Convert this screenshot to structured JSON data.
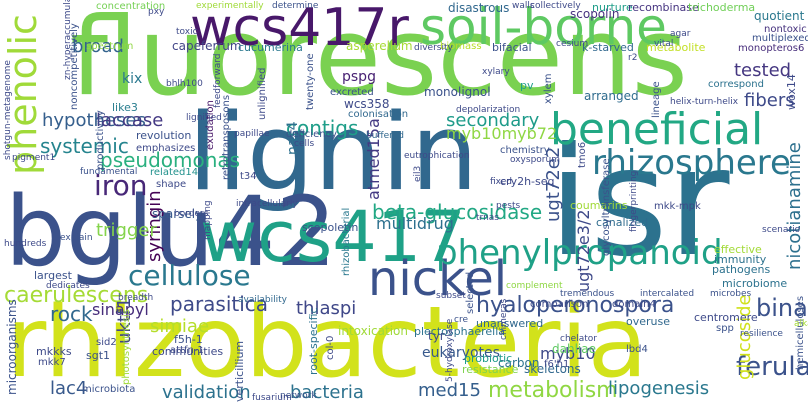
{
  "words": [
    {
      "text": "fluorescens",
      "color": "#7ad151"
    },
    {
      "text": "isr",
      "color": "#2c728e"
    },
    {
      "text": "rhizobacteria",
      "color": "#d2e21b"
    },
    {
      "text": "lignin",
      "color": "#31688e"
    },
    {
      "text": "bglu42",
      "color": "#3b528b"
    },
    {
      "text": "wcs417",
      "color": "#1fa187"
    },
    {
      "text": "wcs417r",
      "color": "#48186a"
    },
    {
      "text": "soil-borne",
      "color": "#5ec962"
    },
    {
      "text": "phenolic",
      "color": "#a0da39"
    },
    {
      "text": "beneficial",
      "color": "#22a884"
    },
    {
      "text": "nickel",
      "color": "#3b528b"
    },
    {
      "text": "rhizosphere",
      "color": "#2a788e"
    },
    {
      "text": "phenylpropanoid",
      "color": "#1fa187"
    },
    {
      "text": "cellulose",
      "color": "#2a788e"
    },
    {
      "text": "iron",
      "color": "#482878"
    },
    {
      "text": "metabolism",
      "color": "#90d743"
    },
    {
      "text": "ferulate",
      "color": "#3b528b"
    },
    {
      "text": "validation",
      "color": "#2c728e"
    },
    {
      "text": "bacteria",
      "color": "#2c728e"
    },
    {
      "text": "pseudomonas",
      "color": "#2ab07f"
    },
    {
      "text": "caerulescens",
      "color": "#a5db36"
    },
    {
      "text": "hyaloperonospora",
      "color": "#3b528b"
    },
    {
      "text": "beta-glucosidase",
      "color": "#22a884"
    },
    {
      "text": "parasitica",
      "color": "#3e4a89"
    },
    {
      "text": "simiae",
      "color": "#b5de2b"
    },
    {
      "text": "binary",
      "color": "#3b528b"
    },
    {
      "text": "contigs",
      "color": "#1f9e89"
    },
    {
      "text": "systemic",
      "color": "#25848e"
    },
    {
      "text": "hypotheses",
      "color": "#355f8d"
    },
    {
      "text": "secondary",
      "color": "#1e9b8a"
    },
    {
      "text": "broad",
      "color": "#33638d"
    },
    {
      "text": "tested",
      "color": "#453781"
    },
    {
      "text": "fibers",
      "color": "#3e4a89"
    },
    {
      "text": "laccase",
      "color": "#443983"
    },
    {
      "text": "myb10myb72",
      "color": "#8fd744"
    },
    {
      "text": "nicotianamine",
      "color": "#2d708e"
    },
    {
      "text": "syringin",
      "color": "#440154"
    },
    {
      "text": "multidrug",
      "color": "#2d708e"
    },
    {
      "text": "ugt72e3/2",
      "color": "#3e4989"
    },
    {
      "text": "ugt72e2",
      "color": "#3b528b"
    },
    {
      "text": "atmed15a",
      "color": "#443a83"
    },
    {
      "text": "trigger",
      "color": "#84d44b"
    },
    {
      "text": "thlaspi",
      "color": "#3f4788"
    },
    {
      "text": "sinapyl",
      "color": "#472d7b"
    },
    {
      "text": "rock",
      "color": "#31688e"
    },
    {
      "text": "lac4",
      "color": "#38598c"
    },
    {
      "text": "uktf1",
      "color": "#3f4788"
    },
    {
      "text": "lipogenesis",
      "color": "#2a788e"
    },
    {
      "text": "med15",
      "color": "#355f8d"
    },
    {
      "text": "myb10",
      "color": "#3e4a89"
    },
    {
      "text": "glucoside",
      "color": "#d0e11c"
    },
    {
      "text": "pspg",
      "color": "#482173"
    },
    {
      "text": "kix",
      "color": "#2a788e"
    },
    {
      "text": "capeferrum",
      "color": "#414487"
    },
    {
      "text": "nas4",
      "color": "#2d708e"
    },
    {
      "text": "wcs358",
      "color": "#3e4a89"
    },
    {
      "text": "asperellum",
      "color": "#a8db34"
    },
    {
      "text": "scopolin",
      "color": "#46327e"
    },
    {
      "text": "quotient",
      "color": "#2a788e"
    },
    {
      "text": "arranged",
      "color": "#2f6c8e"
    },
    {
      "text": "communities",
      "color": "#3e4a89"
    },
    {
      "text": "eukaryotes",
      "color": "#38598c"
    },
    {
      "text": "carbon",
      "color": "#2c728e"
    },
    {
      "text": "like3",
      "color": "#287d8e"
    },
    {
      "text": "monolignol",
      "color": "#3b528b"
    },
    {
      "text": "pv",
      "color": "#1f9e89"
    },
    {
      "text": "dahliae",
      "color": "#5ec962"
    },
    {
      "text": "skeletons",
      "color": "#31688e"
    },
    {
      "text": "intoxication",
      "color": "#a0da39"
    },
    {
      "text": "probiotic",
      "color": "#1e9b8a"
    },
    {
      "text": "resistance",
      "color": "#7fd34e"
    },
    {
      "text": "plectosphaerella",
      "color": "#2c728e"
    },
    {
      "text": "root-specific",
      "color": "#2c728e"
    },
    {
      "text": "concentration",
      "color": "#75d054"
    },
    {
      "text": "experimentally",
      "color": "#a0da39"
    },
    {
      "text": "determine",
      "color": "#3b528b"
    },
    {
      "text": "disastrous",
      "color": "#31688e"
    },
    {
      "text": "collectively",
      "color": "#3e4a89"
    },
    {
      "text": "nurture",
      "color": "#1f9e89"
    },
    {
      "text": "recombinase",
      "color": "#463480"
    },
    {
      "text": "trichoderma",
      "color": "#70cf57"
    },
    {
      "text": "spectrum",
      "color": "#90d743"
    },
    {
      "text": "cucumerina",
      "color": "#2a788e"
    },
    {
      "text": "biomass",
      "color": "#b8de29"
    },
    {
      "text": "bifacial",
      "color": "#3b528b"
    },
    {
      "text": "k-starved",
      "color": "#31688e"
    },
    {
      "text": "metabolite",
      "color": "#c2df23"
    },
    {
      "text": "nontoxic",
      "color": "#46327e"
    },
    {
      "text": "multiplexed",
      "color": "#3b528b"
    },
    {
      "text": "monopteros6",
      "color": "#472d7b"
    },
    {
      "text": "revolution",
      "color": "#3b528b"
    },
    {
      "text": "emphasizes",
      "color": "#3e4a89"
    },
    {
      "text": "colonisation",
      "color": "#31688e"
    },
    {
      "text": "buffered",
      "color": "#31688e"
    },
    {
      "text": "excreted",
      "color": "#3b528b"
    },
    {
      "text": "deficiency",
      "color": "#3b528b"
    },
    {
      "text": "related14",
      "color": "#21918c"
    },
    {
      "text": "shape",
      "color": "#3e4a89"
    },
    {
      "text": "exudation",
      "color": "#48186a"
    },
    {
      "text": "retrotransposons",
      "color": "#3b528b"
    },
    {
      "text": "t34",
      "color": "#3e4a89"
    },
    {
      "text": "sparsely",
      "color": "#38598c"
    },
    {
      "text": "scopoletin",
      "color": "#3b528b"
    },
    {
      "text": "canalized",
      "color": "#2f6c8e"
    },
    {
      "text": "mkk-mpk",
      "color": "#3e4a89"
    },
    {
      "text": "effective",
      "color": "#a2da37"
    },
    {
      "text": "immunity",
      "color": "#2c728e"
    },
    {
      "text": "pathogens",
      "color": "#2c728e"
    },
    {
      "text": "microbiome",
      "color": "#2c728e"
    },
    {
      "text": "complement",
      "color": "#8fd744"
    },
    {
      "text": "tremendous",
      "color": "#3b528b"
    },
    {
      "text": "intercalated",
      "color": "#3b528b"
    },
    {
      "text": "microbes",
      "color": "#3b528b"
    },
    {
      "text": "unanswered",
      "color": "#31688e"
    },
    {
      "text": "centromere",
      "color": "#3e4a89"
    },
    {
      "text": "overuse",
      "color": "#31688e"
    },
    {
      "text": "spp",
      "color": "#3b528b"
    },
    {
      "text": "largest",
      "color": "#3b528b"
    },
    {
      "text": "dedicates",
      "color": "#3e4a89"
    },
    {
      "text": "breadth",
      "color": "#3e4a89"
    },
    {
      "text": "availability",
      "color": "#31688e"
    },
    {
      "text": "microorganisms",
      "color": "#3b528b"
    },
    {
      "text": "mkkks",
      "color": "#3e4a89"
    },
    {
      "text": "mkk7",
      "color": "#3e4a89"
    },
    {
      "text": "f5h-1",
      "color": "#3b528b"
    },
    {
      "text": "attfn-1",
      "color": "#3e4a89"
    },
    {
      "text": "sgt1",
      "color": "#3b528b"
    },
    {
      "text": "sid2",
      "color": "#3e4a89"
    },
    {
      "text": "microbiota",
      "color": "#3b528b"
    },
    {
      "text": "photosynthesis",
      "color": "#a0da39"
    },
    {
      "text": "verticillium",
      "color": "#3b528b"
    },
    {
      "text": "col-0",
      "color": "#3e4a89"
    },
    {
      "text": "5-hydroxylase",
      "color": "#3e4a89"
    },
    {
      "text": "network",
      "color": "#3b528b"
    },
    {
      "text": "tyr",
      "color": "#3e4a89"
    },
    {
      "text": "chelator",
      "color": "#3e4a89"
    },
    {
      "text": "hemicelluloses",
      "color": "#3b528b"
    },
    {
      "text": "alkaline",
      "color": "#a5db36"
    },
    {
      "text": "resilience",
      "color": "#3b528b"
    },
    {
      "text": "wox14",
      "color": "#3e4a89"
    },
    {
      "text": "rhizobacterial",
      "color": "#2a788e"
    },
    {
      "text": "cry2h-seq",
      "color": "#3e4a89"
    },
    {
      "text": "coumarins",
      "color": "#a0da39"
    },
    {
      "text": "glycosyltransferase",
      "color": "#3b528b"
    },
    {
      "text": "fingerprinting",
      "color": "#3e4a89"
    },
    {
      "text": "xylem",
      "color": "#3b528b"
    },
    {
      "text": "lineage",
      "color": "#3b528b"
    },
    {
      "text": "helix-turn-helix",
      "color": "#3e4a89"
    },
    {
      "text": "correspond",
      "color": "#2c728e"
    },
    {
      "text": "f6'h1",
      "color": "#3e4a89"
    },
    {
      "text": "domain4",
      "color": "#3e4a89"
    },
    {
      "text": "lbd4",
      "color": "#3b528b"
    },
    {
      "text": "tmo6",
      "color": "#3e4a89"
    },
    {
      "text": "eutrophication",
      "color": "#3e4a89"
    },
    {
      "text": "comparison",
      "color": "#3e4a89"
    },
    {
      "text": "selected",
      "color": "#3b528b"
    },
    {
      "text": "chimeras",
      "color": "#3e4a89"
    },
    {
      "text": "cre",
      "color": "#3b528b"
    },
    {
      "text": "subset",
      "color": "#3e4a89"
    },
    {
      "text": "fixed",
      "color": "#3e4a89"
    },
    {
      "text": "pests",
      "color": "#3e4a89"
    },
    {
      "text": "trnas",
      "color": "#3e4a89"
    },
    {
      "text": "pxy",
      "color": "#3e4a89"
    },
    {
      "text": "toxic",
      "color": "#3e4a89"
    },
    {
      "text": "noncompetitively",
      "color": "#3b528b"
    },
    {
      "text": "zn-hyperaccumulator",
      "color": "#3e4a89"
    },
    {
      "text": "productivity",
      "color": "#3b528b"
    },
    {
      "text": "pigment1",
      "color": "#3e4a89"
    },
    {
      "text": "fundamental",
      "color": "#3b528b"
    },
    {
      "text": "shotgun-metagenome",
      "color": "#3e4a89"
    },
    {
      "text": "hundreds",
      "color": "#3e4a89"
    },
    {
      "text": "explain",
      "color": "#3b528b"
    },
    {
      "text": "bhlh100",
      "color": "#3e4a89"
    },
    {
      "text": "feedforward",
      "color": "#3e4a89"
    },
    {
      "text": "unlignified",
      "color": "#3e4a89"
    },
    {
      "text": "twenty-one",
      "color": "#3b528b"
    },
    {
      "text": "lignified",
      "color": "#3e4a89"
    },
    {
      "text": "papillae",
      "color": "#3e4a89"
    },
    {
      "text": "intracellularly",
      "color": "#3e4a89"
    },
    {
      "text": "borders",
      "color": "#3e4a89"
    },
    {
      "text": "mapping",
      "color": "#3e4a89"
    },
    {
      "text": "chemistry",
      "color": "#3b528b"
    },
    {
      "text": "oxysporum",
      "color": "#3e4a89"
    },
    {
      "text": "eil3",
      "color": "#3e4a89"
    },
    {
      "text": "depolarization",
      "color": "#3e4a89"
    },
    {
      "text": "xylary",
      "color": "#3e4a89"
    },
    {
      "text": "vital",
      "color": "#3b528b"
    },
    {
      "text": "agar",
      "color": "#3e4a89"
    },
    {
      "text": "r2",
      "color": "#3e4a89"
    },
    {
      "text": "cesium",
      "color": "#3e4a89"
    },
    {
      "text": "diversity",
      "color": "#3e4a89"
    },
    {
      "text": "walls",
      "color": "#3e4a89"
    },
    {
      "text": "scenario",
      "color": "#3e4a89"
    },
    {
      "text": "fusarium",
      "color": "#3e4a89"
    },
    {
      "text": "cells",
      "color": "#3e4a89"
    }
  ]
}
